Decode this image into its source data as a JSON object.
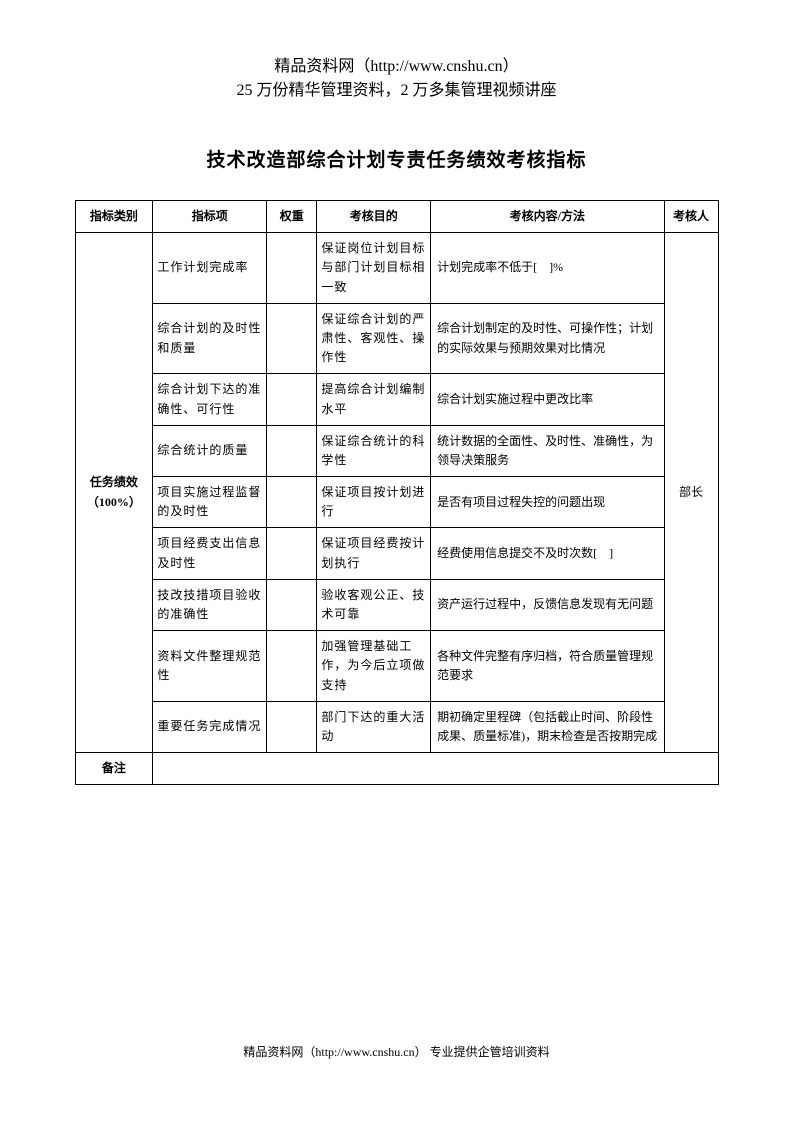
{
  "header": {
    "line1": "精品资料网（http://www.cnshu.cn）",
    "line2": "25 万份精华管理资料，2 万多集管理视频讲座"
  },
  "title": "技术改造部综合计划专责任务绩效考核指标",
  "table": {
    "headers": {
      "category": "指标类别",
      "item": "指标项",
      "weight": "权重",
      "purpose": "考核目的",
      "content": "考核内容/方法",
      "assessor": "考核人"
    },
    "category": "任务绩效（100%）",
    "assessor": "部长",
    "rows": [
      {
        "item": "工作计划完成率",
        "weight": "",
        "purpose": "保证岗位计划目标与部门计划目标相一致",
        "content": "计划完成率不低于[　]%"
      },
      {
        "item": "综合计划的及时性和质量",
        "weight": "",
        "purpose": "保证综合计划的严肃性、客观性、操作性",
        "content": "综合计划制定的及时性、可操作性；计划的实际效果与预期效果对比情况"
      },
      {
        "item": "综合计划下达的准确性、可行性",
        "weight": "",
        "purpose": "提高综合计划编制水平",
        "content": "综合计划实施过程中更改比率"
      },
      {
        "item": "综合统计的质量",
        "weight": "",
        "purpose": "保证综合统计的科学性",
        "content": "统计数据的全面性、及时性、准确性，为领导决策服务"
      },
      {
        "item": "项目实施过程监督的及时性",
        "weight": "",
        "purpose": "保证项目按计划进行",
        "content": "是否有项目过程失控的问题出现"
      },
      {
        "item": "项目经费支出信息及时性",
        "weight": "",
        "purpose": "保证项目经费按计划执行",
        "content": "经费使用信息提交不及时次数[　]"
      },
      {
        "item": "技改技措项目验收的准确性",
        "weight": "",
        "purpose": "验收客观公正、技术可靠",
        "content": "资产运行过程中，反馈信息发现有无问题"
      },
      {
        "item": "资料文件整理规范性",
        "weight": "",
        "purpose": "加强管理基础工作，为今后立项做支持",
        "content": "各种文件完整有序归档，符合质量管理规范要求"
      },
      {
        "item": "重要任务完成情况",
        "weight": "",
        "purpose": "部门下达的重大活动",
        "content": "期初确定里程碑（包括截止时间、阶段性成果、质量标准)，期末检查是否按期完成"
      }
    ],
    "remark_label": "备注"
  },
  "footer": "精品资料网（http://www.cnshu.cn） 专业提供企管培训资料"
}
